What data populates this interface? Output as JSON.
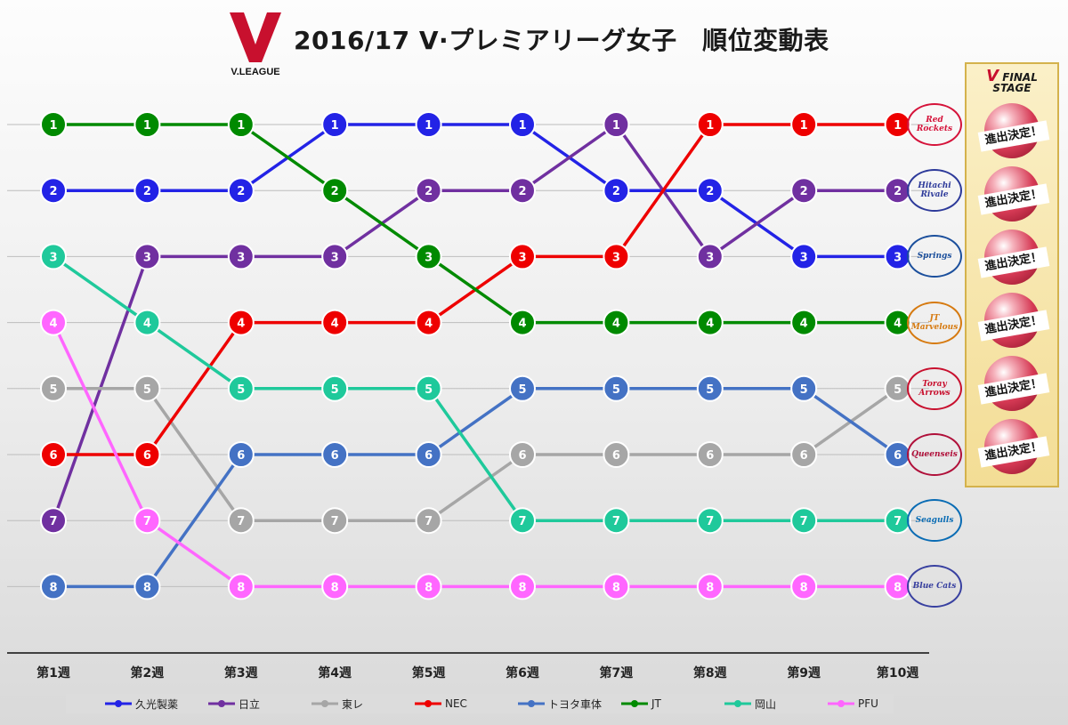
{
  "header": {
    "title": "2016/17 V·プレミアリーグ女子　順位変動表",
    "logo_text": "V.LEAGUE"
  },
  "final_stage": {
    "title": "FINAL STAGE",
    "badges": [
      "進出決定！",
      "進出決定！",
      "進出決定！",
      "進出決定！",
      "進出決定！",
      "進出決定！"
    ]
  },
  "team_logos": [
    {
      "name": "Red Rockets",
      "icon": "red-rockets-logo",
      "color": "#d5133a"
    },
    {
      "name": "Hitachi Rivale",
      "icon": "hitachi-rivale-logo",
      "color": "#2d3a9a"
    },
    {
      "name": "Springs",
      "icon": "springs-logo",
      "color": "#1b4f9c"
    },
    {
      "name": "JT Marvelous",
      "icon": "jt-marvelous-logo",
      "color": "#d67a10"
    },
    {
      "name": "Toray Arrows",
      "icon": "toray-arrows-logo",
      "color": "#c8102e"
    },
    {
      "name": "Queenseis",
      "icon": "queenseis-logo",
      "color": "#b0103a"
    },
    {
      "name": "Seagulls",
      "icon": "seagulls-logo",
      "color": "#0a6cb4"
    },
    {
      "name": "Blue Cats",
      "icon": "blue-cats-logo",
      "color": "#3840a0"
    }
  ],
  "chart_data": {
    "type": "line",
    "title": "2016/17 V·プレミアリーグ女子　順位変動表",
    "categories": [
      "第1週",
      "第2週",
      "第3週",
      "第4週",
      "第5週",
      "第6週",
      "第7週",
      "第8週",
      "第9週",
      "第10週"
    ],
    "ylim": [
      1,
      8
    ],
    "y_inverted": true,
    "grid": true,
    "legend_position": "bottom",
    "series": [
      {
        "name": "久光製薬",
        "color": "#2323e6",
        "values": [
          2,
          2,
          2,
          1,
          1,
          1,
          2,
          2,
          3,
          3
        ]
      },
      {
        "name": "日立",
        "color": "#7030a0",
        "values": [
          7,
          3,
          3,
          3,
          2,
          2,
          1,
          3,
          2,
          2
        ]
      },
      {
        "name": "東レ",
        "color": "#a6a6a6",
        "values": [
          5,
          5,
          7,
          7,
          7,
          6,
          6,
          6,
          6,
          5
        ]
      },
      {
        "name": "NEC",
        "color": "#ee0000",
        "values": [
          6,
          6,
          4,
          4,
          4,
          3,
          3,
          1,
          1,
          1
        ]
      },
      {
        "name": "トヨタ車体",
        "color": "#4472c4",
        "values": [
          8,
          8,
          6,
          6,
          6,
          5,
          5,
          5,
          5,
          6
        ]
      },
      {
        "name": "JT",
        "color": "#008a00",
        "values": [
          1,
          1,
          1,
          2,
          3,
          4,
          4,
          4,
          4,
          4
        ]
      },
      {
        "name": "岡山",
        "color": "#1fc99b",
        "values": [
          3,
          4,
          5,
          5,
          5,
          7,
          7,
          7,
          7,
          7
        ]
      },
      {
        "name": "PFU",
        "color": "#ff66ff",
        "values": [
          4,
          7,
          8,
          8,
          8,
          8,
          8,
          8,
          8,
          8
        ]
      }
    ]
  }
}
